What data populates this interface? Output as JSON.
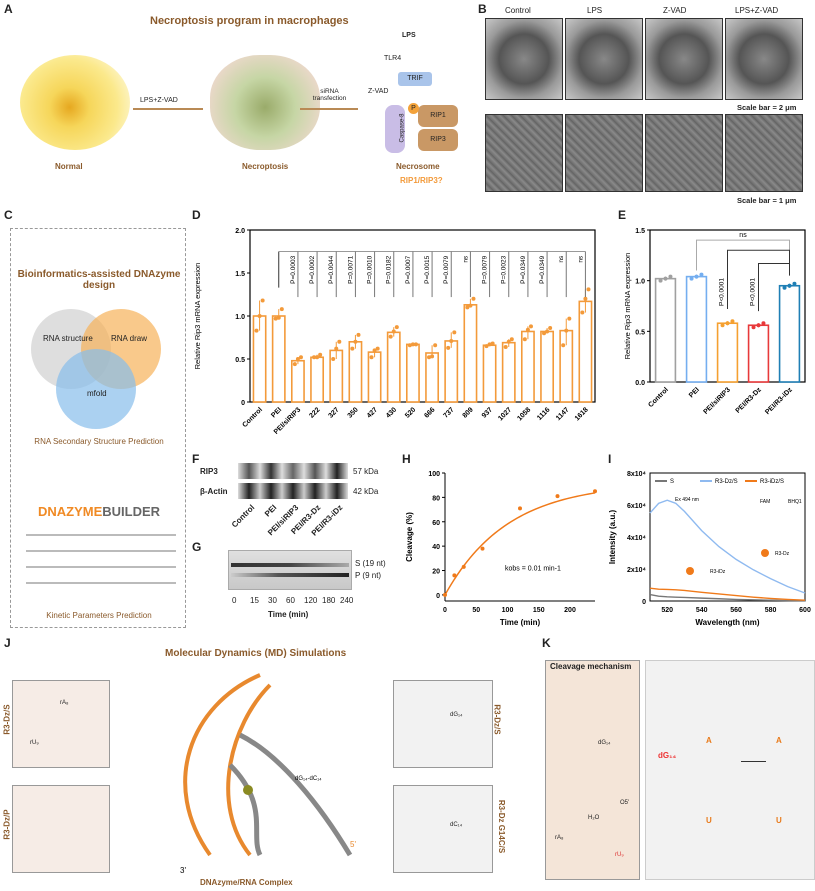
{
  "panels": {
    "A": "A",
    "B": "B",
    "C": "C",
    "D": "D",
    "E": "E",
    "F": "F",
    "G": "G",
    "H": "H",
    "I": "I",
    "J": "J",
    "K": "K"
  },
  "panelA": {
    "title": "Necroptosis program in macrophages",
    "arrow1": "LPS+Z-VAD",
    "arrow2": "siRNA transfection",
    "stage1": "Normal",
    "stage2": "Necroptosis",
    "stage3": "Necrosome",
    "stage3_sub": "RIP1/RIP3?",
    "lps": "LPS",
    "tlr4": "TLR4",
    "trif": "TRIF",
    "zvad": "Z-VAD",
    "casp8": "Caspase-8",
    "rip1": "RIP1",
    "rip3": "RIP3",
    "p": "P"
  },
  "panelB": {
    "conditions": [
      "Control",
      "LPS",
      "Z-VAD",
      "LPS+Z-VAD"
    ],
    "scale_top": "Scale bar = 2 μm",
    "scale_bottom": "Scale bar = 1 μm"
  },
  "panelC": {
    "title": "Bioinformatics-assisted DNAzyme design",
    "venn": [
      "RNA structure",
      "RNA draw",
      "mfold"
    ],
    "caption1": "RNA Secondary Structure Prediction",
    "logo_a": "DNAZYME",
    "logo_b": "BUILDER",
    "caption2": "Kinetic Parameters Prediction",
    "rows": [
      "a",
      "b",
      "c",
      "d"
    ]
  },
  "chart_data": [
    {
      "id": "D",
      "type": "bar",
      "ylabel": "Relative Rip3 mRNA expression",
      "ylim": [
        0,
        2.0
      ],
      "yticks": [
        "0",
        "0.5",
        "1.0",
        "1.5",
        "2.0"
      ],
      "categories": [
        "Control",
        "PEI",
        "PEI/siRIP3",
        "222",
        "327",
        "350",
        "427",
        "430",
        "520",
        "666",
        "737",
        "809",
        "937",
        "1027",
        "1058",
        "1116",
        "1147",
        "1618"
      ],
      "values": [
        1.0,
        1.0,
        0.48,
        0.52,
        0.6,
        0.7,
        0.58,
        0.81,
        0.67,
        0.57,
        0.71,
        1.13,
        0.66,
        0.69,
        0.82,
        0.82,
        0.83,
        1.17
      ],
      "points": [
        [
          0.83,
          1.0,
          1.18
        ],
        [
          0.97,
          0.98,
          1.08
        ],
        [
          0.44,
          0.5,
          0.52
        ],
        [
          0.52,
          0.52,
          0.55
        ],
        [
          0.5,
          0.62,
          0.7
        ],
        [
          0.62,
          0.7,
          0.78
        ],
        [
          0.52,
          0.6,
          0.62
        ],
        [
          0.76,
          0.82,
          0.87
        ],
        [
          0.66,
          0.67,
          0.67
        ],
        [
          0.52,
          0.53,
          0.66
        ],
        [
          0.63,
          0.71,
          0.81
        ],
        [
          1.1,
          1.12,
          1.2
        ],
        [
          0.65,
          0.67,
          0.68
        ],
        [
          0.64,
          0.7,
          0.73
        ],
        [
          0.73,
          0.84,
          0.88
        ],
        [
          0.8,
          0.82,
          0.86
        ],
        [
          0.66,
          0.83,
          0.97
        ],
        [
          1.04,
          1.2,
          1.31
        ]
      ],
      "pvalues": [
        "P=0.0003",
        "P=0.0002",
        "P=0.0044",
        "P=0.0071",
        "P=0.0010",
        "P=0.0182",
        "P=0.0007",
        "P=0.0015",
        "P=0.0079",
        "ns",
        "P=0.0079",
        "P=0.0023",
        "P=0.0349",
        "P=0.0349",
        "ns",
        "ns"
      ],
      "color": "#f39a3a"
    },
    {
      "id": "E",
      "type": "bar",
      "ylabel": "Relative Rip3 mRNA expression",
      "ylim": [
        0,
        1.5
      ],
      "yticks": [
        "0.0",
        "0.5",
        "1.0",
        "1.5"
      ],
      "categories": [
        "Control",
        "PEI",
        "PEI/siRIP3",
        "PEI/R3-Dz",
        "PEI/R3-iDz"
      ],
      "values": [
        1.02,
        1.04,
        0.58,
        0.56,
        0.95
      ],
      "colors": [
        "#a0a0a0",
        "#74aef0",
        "#f5a030",
        "#e8393a",
        "#1f7fb5"
      ],
      "annotations": [
        "ns",
        "P<0.0001",
        "P<0.0001"
      ]
    },
    {
      "id": "H",
      "type": "scatter",
      "xlabel": "Time (min)",
      "ylabel": "Cleavage (%)",
      "xlim": [
        0,
        240
      ],
      "ylim": [
        -5,
        100
      ],
      "xticks": [
        "0",
        "50",
        "100",
        "150",
        "200"
      ],
      "yticks": [
        "0",
        "20",
        "40",
        "60",
        "80",
        "100"
      ],
      "x": [
        0,
        15,
        30,
        60,
        120,
        180,
        240
      ],
      "y": [
        0,
        16,
        23,
        38,
        71,
        81,
        85
      ],
      "fit": "kobs = 0.01 min-1",
      "kobs": 0.01,
      "color": "#f07a1a"
    },
    {
      "id": "I",
      "type": "line",
      "xlabel": "Wavelength (nm)",
      "ylabel": "Intensity (a.u.)",
      "xlim": [
        510,
        600
      ],
      "ylim": [
        0,
        80000
      ],
      "xticks": [
        "520",
        "540",
        "560",
        "580",
        "600"
      ],
      "yticks": [
        "0",
        "2x10⁴",
        "4x10⁴",
        "6x10⁴",
        "8x10⁴"
      ],
      "x": [
        510,
        515,
        520,
        525,
        530,
        540,
        550,
        560,
        570,
        580,
        590,
        600
      ],
      "series": [
        {
          "name": "S",
          "color": "#777777",
          "values": [
            4000,
            3000,
            2600,
            2400,
            2200,
            1800,
            1400,
            1000,
            700,
            500,
            300,
            200
          ]
        },
        {
          "name": "R3-Dz/S",
          "color": "#8fbaf0",
          "values": [
            55000,
            61000,
            63000,
            61000,
            56000,
            44000,
            34000,
            26000,
            19500,
            14000,
            9000,
            5000
          ]
        },
        {
          "name": "R3-iDz/S",
          "color": "#f07a1a",
          "values": [
            8000,
            7400,
            7200,
            7000,
            6600,
            5400,
            4400,
            3400,
            2400,
            1600,
            1000,
            500
          ]
        }
      ],
      "insets": {
        "ex": "Ex 494 nm",
        "fam": "FAM",
        "bhq": "BHQ1",
        "dz": "R3-Dz",
        "idz": "R3-iDz"
      }
    }
  ],
  "panelF": {
    "bands": [
      "RIP3",
      "β-Actin"
    ],
    "sizes": [
      "57 kDa",
      "42 kDa"
    ],
    "lanes": [
      "Control",
      "PEI",
      "PEI/siRIP3",
      "PEI/R3-Dz",
      "PEI/R3-iDz"
    ]
  },
  "panelG": {
    "s": "S (19 nt)",
    "p": "P (9 nt)",
    "times": [
      "0",
      "15",
      "30",
      "60",
      "120",
      "180",
      "240"
    ],
    "xlabel": "Time (min)"
  },
  "panelJ": {
    "title": "Molecular Dynamics (MD) Simulations",
    "complex": "DNAzyme/RNA Complex",
    "left": [
      "R3-Dz/S",
      "R3-Dz/P"
    ],
    "right": [
      "R3-Dz/S",
      "R3-Dz G14C/S"
    ],
    "labels": {
      "ra8": "rA₈",
      "ru9": "rU₉",
      "dg14": "dG₁₄",
      "dc14": "dC₁₄",
      "pair": "dG₁₄-dC₁₄",
      "five": "5'",
      "three": "3'"
    }
  },
  "panelK": {
    "title": "Cleavage mechanism",
    "dg14": "dG₁₄",
    "a": "A",
    "u": "U",
    "ra8": "rA₈",
    "ru9": "rU₉",
    "o5": "O5'",
    "h2o": "H₂O"
  }
}
